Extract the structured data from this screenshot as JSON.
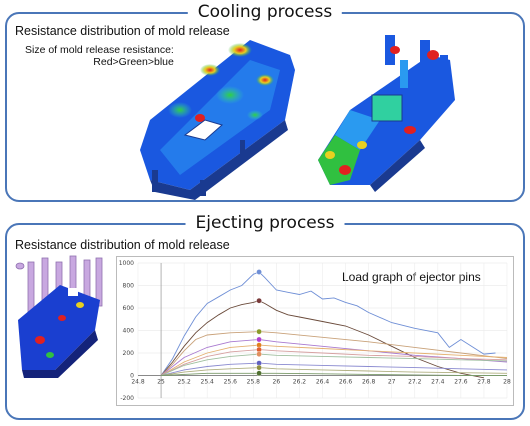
{
  "cooling": {
    "title": "Cooling process",
    "subtitle": "Resistance distribution of mold release",
    "note_line1": "Size of mold release resistance:",
    "note_line2": "Red>Green>blue"
  },
  "ejecting": {
    "title": "Ejecting process",
    "subtitle": "Resistance distribution of mold release"
  },
  "colors": {
    "border": "#4a76b8",
    "red": "#e02020",
    "green": "#20c040",
    "blue": "#1a3fd0"
  },
  "chart_data": {
    "type": "line",
    "title": "Load graph of ejector pins",
    "xlim": [
      24.8,
      28
    ],
    "ylim": [
      -200,
      1000
    ],
    "x_ticks": [
      "24.8",
      "25",
      "25.2",
      "25.4",
      "25.6",
      "25.8",
      "26",
      "26.2",
      "26.4",
      "26.6",
      "26.8",
      "27",
      "27.2",
      "27.4",
      "27.6",
      "27.8",
      "28"
    ],
    "y_ticks": [
      "1000",
      "800",
      "600",
      "400",
      "200",
      "0",
      "-200"
    ],
    "series": [
      {
        "color": "#6f8fd6",
        "marker": "#6f8fd6",
        "x": [
          25,
          25.1,
          25.2,
          25.3,
          25.4,
          25.5,
          25.6,
          25.7,
          25.8,
          25.85,
          25.9,
          26.0,
          26.1,
          26.2,
          26.3,
          26.4,
          26.5,
          26.6,
          26.7,
          26.8,
          27.0,
          27.2,
          27.4,
          27.5,
          27.6,
          27.8,
          27.9
        ],
        "y": [
          0,
          150,
          350,
          520,
          640,
          700,
          760,
          800,
          900,
          920,
          870,
          760,
          740,
          720,
          750,
          680,
          690,
          650,
          620,
          560,
          470,
          420,
          380,
          250,
          320,
          190,
          200
        ]
      },
      {
        "color": "#6a4a3a",
        "marker": "#7a3a3a",
        "x": [
          25,
          25.1,
          25.2,
          25.3,
          25.4,
          25.5,
          25.6,
          25.7,
          25.8,
          25.85,
          25.9,
          26.0,
          26.1,
          26.2,
          26.4,
          26.6,
          26.8,
          27.0,
          27.2,
          27.4,
          27.6,
          27.8
        ],
        "y": [
          0,
          120,
          260,
          380,
          470,
          540,
          600,
          630,
          650,
          665,
          640,
          580,
          540,
          520,
          480,
          440,
          360,
          260,
          160,
          80,
          20,
          -20
        ]
      },
      {
        "color": "#c9a27a",
        "marker": "#8a9a2a",
        "x": [
          25,
          25.1,
          25.2,
          25.3,
          25.4,
          25.6,
          25.85,
          26.0,
          26.4,
          26.8,
          27.2,
          27.6,
          28
        ],
        "y": [
          0,
          100,
          220,
          320,
          360,
          380,
          390,
          380,
          340,
          300,
          250,
          200,
          150
        ]
      },
      {
        "color": "#a97ad0",
        "marker": "#b040d0",
        "x": [
          25,
          25.2,
          25.4,
          25.6,
          25.85,
          26.0,
          26.4,
          26.8,
          27.2,
          27.6,
          28
        ],
        "y": [
          0,
          160,
          250,
          300,
          320,
          300,
          260,
          220,
          180,
          150,
          120
        ]
      },
      {
        "color": "#e4b070",
        "marker": "#e08020",
        "x": [
          25,
          25.2,
          25.4,
          25.6,
          25.85,
          26.0,
          26.4,
          26.8,
          27.2,
          27.6,
          28
        ],
        "y": [
          0,
          120,
          200,
          250,
          270,
          260,
          240,
          220,
          200,
          180,
          160
        ]
      },
      {
        "color": "#d6a0a0",
        "marker": "#e06030",
        "x": [
          25,
          25.2,
          25.4,
          25.6,
          25.85,
          26.0,
          26.4,
          26.8,
          27.2,
          27.6,
          28
        ],
        "y": [
          0,
          100,
          170,
          210,
          230,
          220,
          200,
          180,
          170,
          150,
          140
        ]
      },
      {
        "color": "#9fbf9f",
        "marker": "#e09060",
        "x": [
          25,
          25.2,
          25.4,
          25.6,
          25.85,
          26.0,
          26.4,
          26.8,
          27.2,
          27.6,
          28
        ],
        "y": [
          0,
          90,
          140,
          170,
          190,
          180,
          170,
          160,
          150,
          140,
          130
        ]
      },
      {
        "color": "#8a8ad0",
        "marker": "#6060c0",
        "x": [
          25,
          25.2,
          25.4,
          25.6,
          25.85,
          26.0,
          26.4,
          26.8,
          27.2,
          27.6,
          28
        ],
        "y": [
          0,
          50,
          80,
          100,
          110,
          100,
          90,
          80,
          70,
          60,
          50
        ]
      },
      {
        "color": "#b0b080",
        "marker": "#909040",
        "x": [
          25,
          25.2,
          25.4,
          25.6,
          25.85,
          26.0,
          26.4,
          26.8,
          27.2,
          27.6,
          28
        ],
        "y": [
          0,
          30,
          50,
          60,
          70,
          60,
          50,
          40,
          30,
          25,
          20
        ]
      },
      {
        "color": "#7a9a6a",
        "marker": "#507030",
        "x": [
          25,
          25.2,
          25.4,
          25.6,
          25.85,
          26.0,
          26.4,
          26.8,
          27.2,
          27.6,
          28
        ],
        "y": [
          0,
          10,
          20,
          20,
          20,
          20,
          15,
          10,
          5,
          0,
          0
        ]
      }
    ]
  }
}
